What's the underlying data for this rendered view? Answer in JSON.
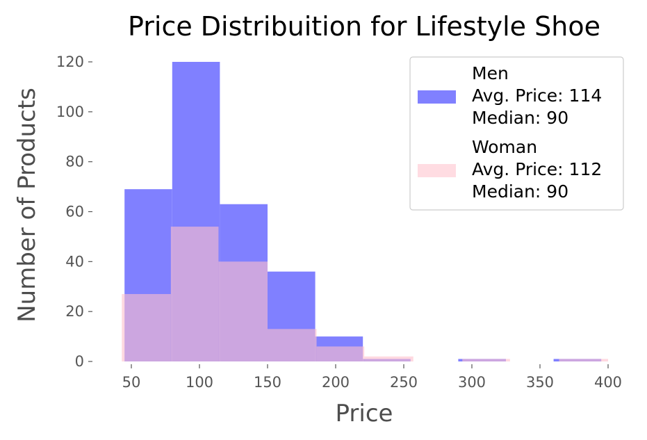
{
  "chart_data": {
    "type": "bar",
    "subtype": "overlaid-histogram",
    "title": "Price Distribuition for Lifestyle Shoe",
    "xlabel": "Price",
    "ylabel": "Number of Products",
    "xlim": [
      30,
      410
    ],
    "ylim": [
      0,
      125
    ],
    "xticks": [
      50,
      100,
      150,
      200,
      250,
      300,
      350,
      400
    ],
    "yticks": [
      0,
      20,
      40,
      60,
      80,
      100,
      120
    ],
    "grid": false,
    "legend_position": "top-right",
    "series": [
      {
        "name": "Men",
        "legend_lines": [
          "Men",
          "Avg. Price: 114",
          "Median: 90"
        ],
        "color": "#8080ff",
        "bins": [
          {
            "x0": 45,
            "x1": 80,
            "count": 69
          },
          {
            "x0": 80,
            "x1": 115,
            "count": 120
          },
          {
            "x0": 115,
            "x1": 150,
            "count": 63
          },
          {
            "x0": 150,
            "x1": 185,
            "count": 36
          },
          {
            "x0": 185,
            "x1": 220,
            "count": 10
          },
          {
            "x0": 220,
            "x1": 255,
            "count": 1
          },
          {
            "x0": 255,
            "x1": 290,
            "count": 0
          },
          {
            "x0": 290,
            "x1": 325,
            "count": 1
          },
          {
            "x0": 325,
            "x1": 360,
            "count": 0
          },
          {
            "x0": 360,
            "x1": 395,
            "count": 1
          }
        ]
      },
      {
        "name": "Woman",
        "legend_lines": [
          "Woman",
          "Avg. Price: 112",
          "Median: 90"
        ],
        "color": "#ffc0cb",
        "bins": [
          {
            "x0": 43,
            "x1": 79,
            "count": 27
          },
          {
            "x0": 79,
            "x1": 114,
            "count": 54
          },
          {
            "x0": 114,
            "x1": 150,
            "count": 40
          },
          {
            "x0": 150,
            "x1": 186,
            "count": 13
          },
          {
            "x0": 186,
            "x1": 221,
            "count": 6
          },
          {
            "x0": 221,
            "x1": 257,
            "count": 2
          },
          {
            "x0": 257,
            "x1": 293,
            "count": 0
          },
          {
            "x0": 293,
            "x1": 328,
            "count": 1
          },
          {
            "x0": 328,
            "x1": 364,
            "count": 0
          },
          {
            "x0": 364,
            "x1": 400,
            "count": 1
          }
        ]
      }
    ]
  }
}
